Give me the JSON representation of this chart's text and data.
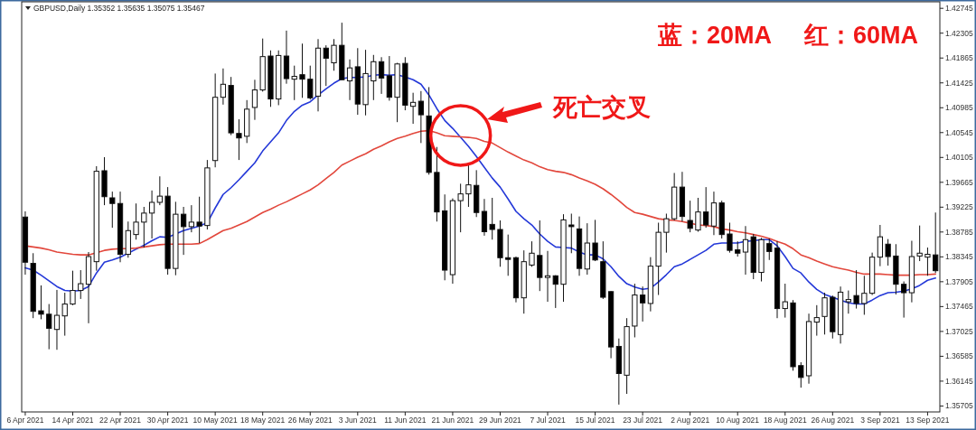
{
  "chart_data": {
    "type": "candlestick",
    "annotations": [
      "GBPUSD,Daily 1.35352 1.35635 1.35075 1.35467",
      "蓝：20MA",
      "红：60MA",
      "死亡交叉"
    ],
    "categories": [
      "6 Apr 2021",
      null,
      null,
      null,
      null,
      null,
      "14 Apr 2021",
      null,
      null,
      null,
      null,
      null,
      "22 Apr 2021",
      null,
      null,
      null,
      null,
      null,
      "30 Apr 2021",
      null,
      null,
      null,
      null,
      null,
      "10 May 2021",
      null,
      null,
      null,
      null,
      null,
      "18 May 2021",
      null,
      null,
      null,
      null,
      null,
      "26 May 2021",
      null,
      null,
      null,
      null,
      null,
      "3 Jun 2021",
      null,
      null,
      null,
      null,
      null,
      "11 Jun 2021",
      null,
      null,
      null,
      null,
      null,
      "21 Jun 2021",
      null,
      null,
      null,
      null,
      null,
      "29 Jun 2021",
      null,
      null,
      null,
      null,
      null,
      "7 Jul 2021",
      null,
      null,
      null,
      null,
      null,
      "15 Jul 2021",
      null,
      null,
      null,
      null,
      null,
      "23 Jul 2021",
      null,
      null,
      null,
      null,
      null,
      "2 Aug 2021",
      null,
      null,
      null,
      null,
      null,
      "10 Aug 2021",
      null,
      null,
      null,
      null,
      null,
      "18 Aug 2021",
      null,
      null,
      null,
      null,
      null,
      "26 Aug 2021",
      null,
      null,
      null,
      null,
      null,
      "3 Sep 2021",
      null,
      null,
      null,
      null,
      null,
      "13 Sep 2021",
      null
    ],
    "ohlc": [
      [
        1.3905,
        1.3915,
        1.3803,
        1.3825
      ],
      [
        1.3823,
        1.3841,
        1.3726,
        1.3738
      ],
      [
        1.3739,
        1.3784,
        1.3724,
        1.3733
      ],
      [
        1.3733,
        1.3751,
        1.3671,
        1.3708
      ],
      [
        1.3706,
        1.3776,
        1.367,
        1.3731
      ],
      [
        1.373,
        1.3771,
        1.3695,
        1.3751
      ],
      [
        1.3751,
        1.381,
        1.3749,
        1.3775
      ],
      [
        1.3775,
        1.3811,
        1.376,
        1.3787
      ],
      [
        1.3786,
        1.3843,
        1.3717,
        1.3835
      ],
      [
        1.3826,
        1.3995,
        1.381,
        1.3986
      ],
      [
        1.3987,
        1.4011,
        1.3926,
        1.3941
      ],
      [
        1.3939,
        1.395,
        1.3886,
        1.3929
      ],
      [
        1.3929,
        1.395,
        1.3825,
        1.3839
      ],
      [
        1.3839,
        1.3897,
        1.3833,
        1.3881
      ],
      [
        1.3874,
        1.3929,
        1.3865,
        1.3896
      ],
      [
        1.3896,
        1.3923,
        1.3851,
        1.3912
      ],
      [
        1.3912,
        1.3952,
        1.3867,
        1.3931
      ],
      [
        1.3931,
        1.3977,
        1.3926,
        1.3942
      ],
      [
        1.3942,
        1.3958,
        1.3803,
        1.3814
      ],
      [
        1.3814,
        1.3932,
        1.3802,
        1.391
      ],
      [
        1.391,
        1.3923,
        1.3838,
        1.3888
      ],
      [
        1.3888,
        1.3926,
        1.3878,
        1.3896
      ],
      [
        1.3896,
        1.3941,
        1.3859,
        1.3889
      ],
      [
        1.389,
        1.4006,
        1.3883,
        1.3992
      ],
      [
        1.4005,
        1.4159,
        1.3993,
        1.4117
      ],
      [
        1.4117,
        1.4168,
        1.4104,
        1.414
      ],
      [
        1.4138,
        1.4153,
        1.405,
        1.4054
      ],
      [
        1.4053,
        1.4078,
        1.4006,
        1.4045
      ],
      [
        1.4048,
        1.4112,
        1.4036,
        1.4096
      ],
      [
        1.4099,
        1.4148,
        1.4077,
        1.413
      ],
      [
        1.413,
        1.4221,
        1.4127,
        1.4189
      ],
      [
        1.419,
        1.42,
        1.41,
        1.4114
      ],
      [
        1.4114,
        1.42,
        1.4103,
        1.4191
      ],
      [
        1.419,
        1.4235,
        1.4141,
        1.415
      ],
      [
        1.4149,
        1.4173,
        1.4112,
        1.4154
      ],
      [
        1.4157,
        1.4212,
        1.4116,
        1.4149
      ],
      [
        1.4149,
        1.4173,
        1.4113,
        1.4116
      ],
      [
        1.4119,
        1.422,
        1.4092,
        1.4204
      ],
      [
        1.4204,
        1.4209,
        1.4137,
        1.4186
      ],
      [
        1.4178,
        1.422,
        1.4164,
        1.4209
      ],
      [
        1.4209,
        1.4249,
        1.4148,
        1.4148
      ],
      [
        1.4146,
        1.4184,
        1.4112,
        1.4169
      ],
      [
        1.4171,
        1.4204,
        1.4086,
        1.4105
      ],
      [
        1.4104,
        1.4201,
        1.4085,
        1.4159
      ],
      [
        1.4146,
        1.4192,
        1.4112,
        1.418
      ],
      [
        1.418,
        1.4188,
        1.4123,
        1.4151
      ],
      [
        1.4155,
        1.419,
        1.4111,
        1.4117
      ],
      [
        1.4117,
        1.4178,
        1.4073,
        1.4176
      ],
      [
        1.4177,
        1.4188,
        1.4094,
        1.4103
      ],
      [
        1.4101,
        1.4125,
        1.407,
        1.4108
      ],
      [
        1.411,
        1.4128,
        1.4036,
        1.4086
      ],
      [
        1.4084,
        1.4135,
        1.398,
        1.3984
      ],
      [
        1.3984,
        1.4029,
        1.3897,
        1.3914
      ],
      [
        1.3916,
        1.3945,
        1.3793,
        1.3811
      ],
      [
        1.3803,
        1.3938,
        1.3787,
        1.3934
      ],
      [
        1.3934,
        1.3964,
        1.3878,
        1.3946
      ],
      [
        1.3946,
        1.3998,
        1.3923,
        1.3962
      ],
      [
        1.3961,
        1.3988,
        1.3905,
        1.3913
      ],
      [
        1.3915,
        1.3937,
        1.3872,
        1.3879
      ],
      [
        1.3892,
        1.3939,
        1.3865,
        1.3883
      ],
      [
        1.3883,
        1.3899,
        1.3817,
        1.3833
      ],
      [
        1.3833,
        1.3874,
        1.3801,
        1.383
      ],
      [
        1.3833,
        1.3835,
        1.3754,
        1.3762
      ],
      [
        1.3762,
        1.3846,
        1.3734,
        1.3826
      ],
      [
        1.382,
        1.3862,
        1.3817,
        1.3841
      ],
      [
        1.3837,
        1.3899,
        1.3774,
        1.3798
      ],
      [
        1.3798,
        1.3845,
        1.3755,
        1.3801
      ],
      [
        1.3801,
        1.3802,
        1.3744,
        1.3786
      ],
      [
        1.3786,
        1.391,
        1.3755,
        1.39
      ],
      [
        1.3891,
        1.3911,
        1.3841,
        1.3888
      ],
      [
        1.3884,
        1.3906,
        1.3801,
        1.3814
      ],
      [
        1.3813,
        1.3894,
        1.3803,
        1.3859
      ],
      [
        1.3859,
        1.39,
        1.3827,
        1.3829
      ],
      [
        1.3826,
        1.3862,
        1.376,
        1.3763
      ],
      [
        1.3773,
        1.3774,
        1.3655,
        1.3675
      ],
      [
        1.3676,
        1.369,
        1.3573,
        1.3628
      ],
      [
        1.3625,
        1.3726,
        1.3592,
        1.3711
      ],
      [
        1.3712,
        1.3787,
        1.3692,
        1.3767
      ],
      [
        1.3767,
        1.3782,
        1.372,
        1.3753
      ],
      [
        1.3752,
        1.3834,
        1.3738,
        1.3818
      ],
      [
        1.3818,
        1.3895,
        1.3767,
        1.3878
      ],
      [
        1.3878,
        1.3911,
        1.3842,
        1.3902
      ],
      [
        1.3902,
        1.3983,
        1.3899,
        1.3958
      ],
      [
        1.3958,
        1.3985,
        1.3897,
        1.3906
      ],
      [
        1.3899,
        1.3934,
        1.3878,
        1.3885
      ],
      [
        1.3882,
        1.3939,
        1.3879,
        1.3914
      ],
      [
        1.3914,
        1.3958,
        1.3886,
        1.3891
      ],
      [
        1.3889,
        1.395,
        1.3873,
        1.393
      ],
      [
        1.393,
        1.3934,
        1.3867,
        1.3874
      ],
      [
        1.3875,
        1.3895,
        1.3842,
        1.3846
      ],
      [
        1.3847,
        1.3862,
        1.3835,
        1.3841
      ],
      [
        1.3843,
        1.3889,
        1.3803,
        1.3865
      ],
      [
        1.387,
        1.3875,
        1.3795,
        1.3807
      ],
      [
        1.3807,
        1.3868,
        1.3791,
        1.3865
      ],
      [
        1.3858,
        1.3867,
        1.3829,
        1.3844
      ],
      [
        1.385,
        1.3862,
        1.3726,
        1.3743
      ],
      [
        1.3743,
        1.3787,
        1.3727,
        1.3755
      ],
      [
        1.3753,
        1.3758,
        1.3633,
        1.364
      ],
      [
        1.3642,
        1.3648,
        1.3603,
        1.3621
      ],
      [
        1.3624,
        1.3734,
        1.361,
        1.372
      ],
      [
        1.3719,
        1.3749,
        1.3695,
        1.3727
      ],
      [
        1.3729,
        1.3771,
        1.3697,
        1.3762
      ],
      [
        1.3763,
        1.3766,
        1.369,
        1.3702
      ],
      [
        1.3697,
        1.3782,
        1.3681,
        1.3772
      ],
      [
        1.3755,
        1.3775,
        1.3734,
        1.3759
      ],
      [
        1.3766,
        1.3811,
        1.3743,
        1.3752
      ],
      [
        1.3752,
        1.3801,
        1.3732,
        1.377
      ],
      [
        1.377,
        1.3842,
        1.3767,
        1.3834
      ],
      [
        1.3834,
        1.3891,
        1.3818,
        1.387
      ],
      [
        1.3857,
        1.3866,
        1.3819,
        1.3835
      ],
      [
        1.3836,
        1.3857,
        1.3768,
        1.3786
      ],
      [
        1.3786,
        1.3791,
        1.3727,
        1.3771
      ],
      [
        1.3771,
        1.3863,
        1.3754,
        1.3835
      ],
      [
        1.3836,
        1.389,
        1.3827,
        1.3841
      ],
      [
        1.3834,
        1.3851,
        1.3801,
        1.3839
      ],
      [
        1.3838,
        1.3913,
        1.3806,
        1.381
      ]
    ],
    "series": [
      {
        "type": "line",
        "color": "#2438d8",
        "values": [
          1.3815,
          1.3811,
          1.3802,
          1.3792,
          1.3782,
          1.3775,
          1.3774,
          1.3775,
          1.3782,
          1.3806,
          1.3825,
          1.3829,
          1.3834,
          1.3841,
          1.3848,
          1.3855,
          1.3863,
          1.387,
          1.3869,
          1.3875,
          1.3881,
          1.3885,
          1.3889,
          1.3895,
          1.3921,
          1.3945,
          1.3957,
          1.3971,
          1.3986,
          1.4001,
          1.4022,
          1.4038,
          1.4054,
          1.4076,
          1.4092,
          1.4103,
          1.4109,
          1.4121,
          1.4132,
          1.4142,
          1.415,
          1.4152,
          1.4152,
          1.4153,
          1.4156,
          1.4157,
          1.4156,
          1.4157,
          1.4153,
          1.4148,
          1.414,
          1.4121,
          1.4097,
          1.4076,
          1.4062,
          1.4046,
          1.403,
          1.4012,
          1.3993,
          1.3974,
          1.3958,
          1.3937,
          1.3915,
          1.3902,
          1.3891,
          1.3875,
          1.3862,
          1.3852,
          1.3851,
          1.385,
          1.3843,
          1.3838,
          1.3838,
          1.3831,
          1.3817,
          1.38,
          1.3787,
          1.3781,
          1.3777,
          1.3779,
          1.379,
          1.3803,
          1.3817,
          1.3822,
          1.383,
          1.3838,
          1.3846,
          1.3857,
          1.3859,
          1.3859,
          1.3859,
          1.3862,
          1.3863,
          1.3865,
          1.3865,
          1.3854,
          1.3835,
          1.3814,
          1.3806,
          1.379,
          1.3777,
          1.3768,
          1.3763,
          1.3758,
          1.3753,
          1.3751,
          1.3751,
          1.3758,
          1.3766,
          1.3771,
          1.3772,
          1.3774,
          1.3778,
          1.3784,
          1.3793,
          1.3797
        ]
      },
      {
        "type": "line",
        "color": "#e2473c",
        "values": [
          1.3854,
          1.3852,
          1.385,
          1.3847,
          1.3843,
          1.3841,
          1.3839,
          1.3838,
          1.3838,
          1.3842,
          1.3846,
          1.3848,
          1.3849,
          1.3849,
          1.385,
          1.3852,
          1.3854,
          1.3856,
          1.3857,
          1.3857,
          1.3857,
          1.3857,
          1.3858,
          1.3865,
          1.3873,
          1.3881,
          1.3885,
          1.3891,
          1.3897,
          1.3905,
          1.3913,
          1.3919,
          1.3926,
          1.3932,
          1.3939,
          1.3946,
          1.3953,
          1.3962,
          1.3973,
          1.3984,
          1.3997,
          1.4004,
          1.4011,
          1.4017,
          1.4025,
          1.4031,
          1.4038,
          1.4044,
          1.4048,
          1.4053,
          1.4057,
          1.4058,
          1.4054,
          1.4049,
          1.4048,
          1.4047,
          1.4046,
          1.4044,
          1.4039,
          1.4036,
          1.4028,
          1.402,
          1.4013,
          1.4006,
          1.4001,
          1.3994,
          1.3989,
          1.3986,
          1.3984,
          1.398,
          1.3974,
          1.3969,
          1.3963,
          1.3955,
          1.3945,
          1.3934,
          1.3922,
          1.3913,
          1.391,
          1.3906,
          1.3902,
          1.39,
          1.3899,
          1.3897,
          1.3894,
          1.3891,
          1.389,
          1.3888,
          1.3884,
          1.3882,
          1.3879,
          1.3877,
          1.3874,
          1.3871,
          1.3867,
          1.3862,
          1.3857,
          1.3849,
          1.3838,
          1.3833,
          1.3827,
          1.3822,
          1.3817,
          1.3814,
          1.3811,
          1.3807,
          1.3804,
          1.3804,
          1.3804,
          1.3803,
          1.3802,
          1.3802,
          1.3802,
          1.3803,
          1.3803,
          1.3804
        ]
      }
    ],
    "ylim": [
      1.356,
      1.4286
    ],
    "yticks": [
      1.42745,
      1.42305,
      1.41865,
      1.41425,
      1.40985,
      1.40545,
      1.40105,
      1.39665,
      1.39225,
      1.38785,
      1.38345,
      1.37905,
      1.37465,
      1.37025,
      1.36585,
      1.36145,
      1.35705
    ]
  }
}
